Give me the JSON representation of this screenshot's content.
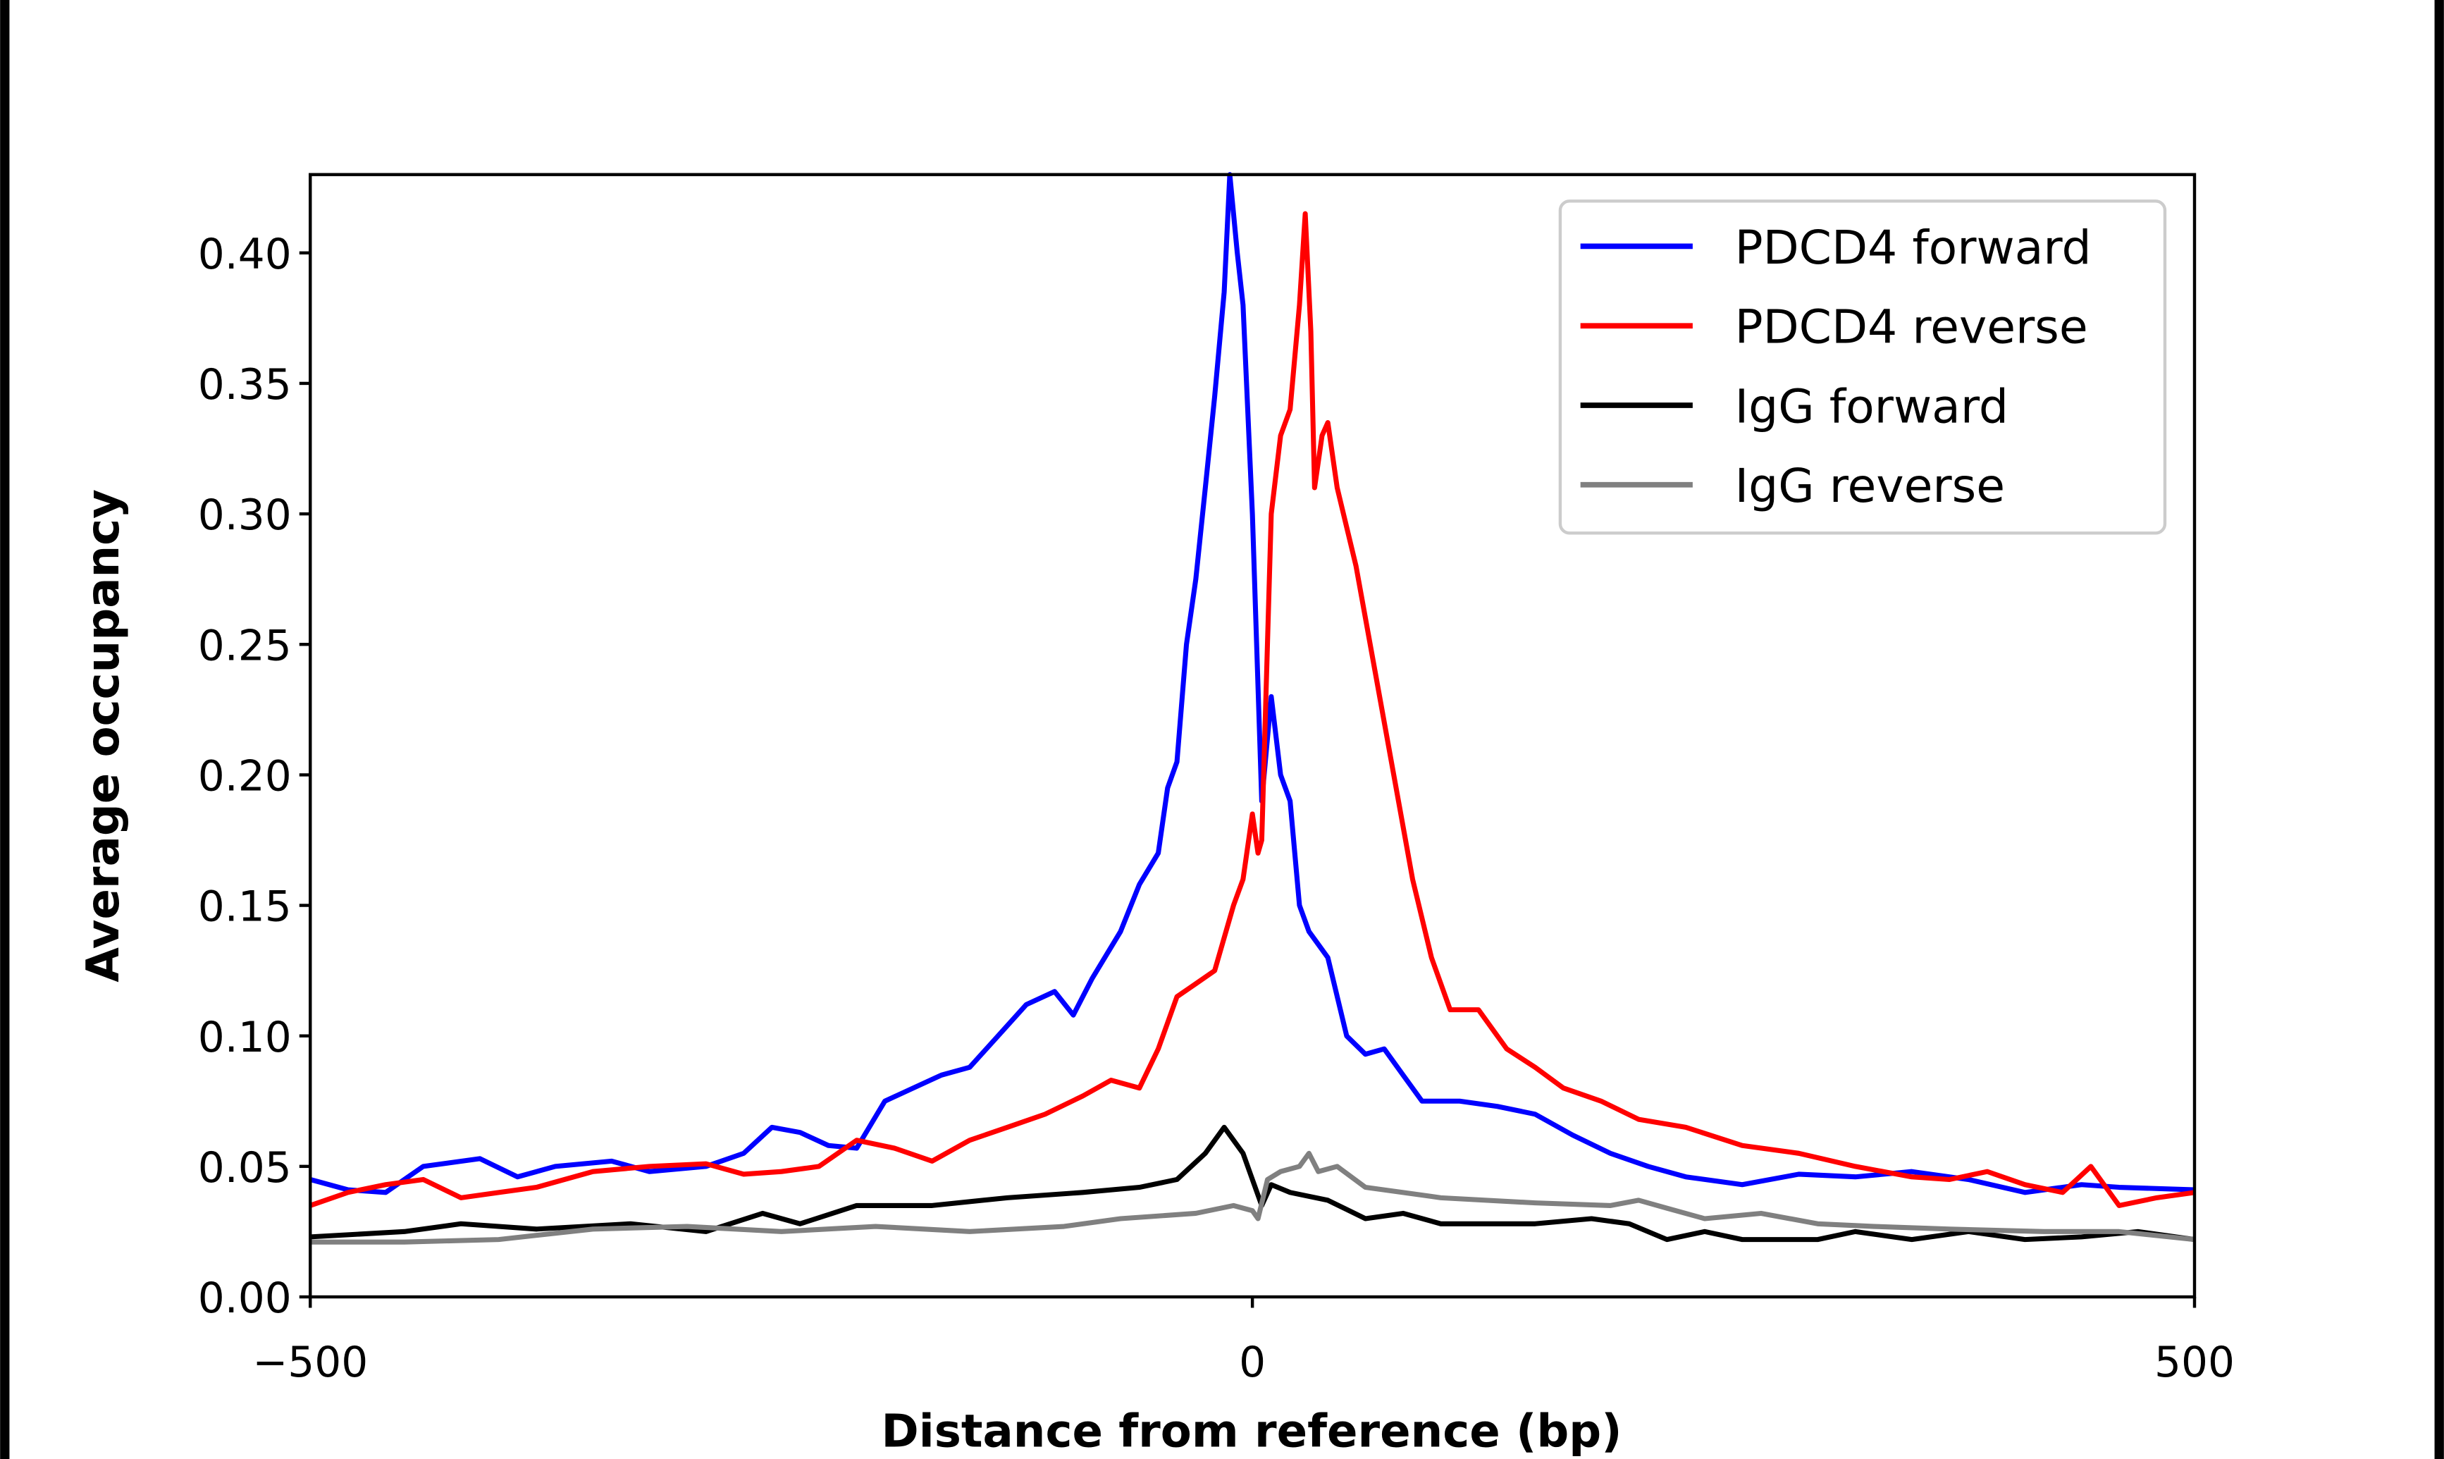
{
  "chart_data": {
    "type": "line",
    "title": "",
    "xlabel": "Distance from reference (bp)",
    "ylabel": "Average occupancy",
    "xlim": [
      -500,
      500
    ],
    "ylim": [
      0,
      0.43
    ],
    "xticks": [
      -500,
      0,
      500
    ],
    "xtick_labels": [
      "−500",
      "0",
      "500"
    ],
    "yticks": [
      0,
      0.05,
      0.1,
      0.15,
      0.2,
      0.25,
      0.3,
      0.35,
      0.4
    ],
    "ytick_labels": [
      "0.00",
      "0.05",
      "0.10",
      "0.15",
      "0.20",
      "0.25",
      "0.30",
      "0.35",
      "0.40"
    ],
    "grid": false,
    "legend_position": "top-right",
    "series": [
      {
        "name": "PDCD4 forward",
        "color": "#0000ff",
        "x": [
          -500,
          -480,
          -460,
          -440,
          -410,
          -390,
          -370,
          -340,
          -320,
          -290,
          -270,
          -255,
          -240,
          -225,
          -210,
          -195,
          -180,
          -165,
          -150,
          -135,
          -120,
          -105,
          -95,
          -85,
          -70,
          -60,
          -50,
          -45,
          -40,
          -35,
          -30,
          -25,
          -20,
          -15,
          -12,
          -8,
          -5,
          0,
          5,
          10,
          15,
          20,
          25,
          30,
          40,
          50,
          60,
          70,
          80,
          90,
          110,
          130,
          150,
          170,
          190,
          210,
          230,
          260,
          290,
          320,
          350,
          380,
          410,
          440,
          460,
          500
        ],
        "y": [
          0.045,
          0.041,
          0.04,
          0.05,
          0.053,
          0.046,
          0.05,
          0.052,
          0.048,
          0.05,
          0.055,
          0.065,
          0.063,
          0.058,
          0.057,
          0.075,
          0.08,
          0.085,
          0.088,
          0.1,
          0.112,
          0.117,
          0.108,
          0.122,
          0.14,
          0.158,
          0.17,
          0.195,
          0.205,
          0.25,
          0.275,
          0.31,
          0.345,
          0.385,
          0.43,
          0.4,
          0.38,
          0.3,
          0.19,
          0.23,
          0.2,
          0.19,
          0.15,
          0.14,
          0.13,
          0.1,
          0.093,
          0.095,
          0.085,
          0.075,
          0.075,
          0.073,
          0.07,
          0.062,
          0.055,
          0.05,
          0.046,
          0.043,
          0.047,
          0.046,
          0.048,
          0.045,
          0.04,
          0.043,
          0.042,
          0.041
        ]
      },
      {
        "name": "PDCD4 reverse",
        "color": "#ff0000",
        "x": [
          -500,
          -480,
          -460,
          -440,
          -420,
          -400,
          -380,
          -350,
          -320,
          -290,
          -270,
          -250,
          -230,
          -210,
          -190,
          -170,
          -150,
          -130,
          -110,
          -90,
          -75,
          -60,
          -50,
          -40,
          -30,
          -20,
          -10,
          -5,
          0,
          3,
          5,
          10,
          15,
          20,
          25,
          28,
          31,
          33,
          37,
          40,
          45,
          55,
          65,
          75,
          85,
          95,
          105,
          120,
          135,
          150,
          165,
          185,
          205,
          230,
          260,
          290,
          320,
          350,
          370,
          390,
          410,
          430,
          445,
          460,
          480,
          500
        ],
        "y": [
          0.035,
          0.04,
          0.043,
          0.045,
          0.038,
          0.04,
          0.042,
          0.048,
          0.05,
          0.051,
          0.047,
          0.048,
          0.05,
          0.06,
          0.057,
          0.052,
          0.06,
          0.065,
          0.07,
          0.077,
          0.083,
          0.08,
          0.095,
          0.115,
          0.12,
          0.125,
          0.15,
          0.16,
          0.185,
          0.17,
          0.175,
          0.3,
          0.33,
          0.34,
          0.38,
          0.415,
          0.37,
          0.31,
          0.33,
          0.335,
          0.31,
          0.28,
          0.24,
          0.2,
          0.16,
          0.13,
          0.11,
          0.11,
          0.095,
          0.088,
          0.08,
          0.075,
          0.068,
          0.065,
          0.058,
          0.055,
          0.05,
          0.046,
          0.045,
          0.048,
          0.043,
          0.04,
          0.05,
          0.035,
          0.038,
          0.04
        ]
      },
      {
        "name": "IgG forward",
        "color": "#000000",
        "x": [
          -500,
          -450,
          -420,
          -380,
          -330,
          -290,
          -260,
          -240,
          -210,
          -170,
          -130,
          -90,
          -60,
          -40,
          -25,
          -15,
          -5,
          0,
          5,
          10,
          20,
          40,
          60,
          80,
          100,
          150,
          180,
          200,
          220,
          240,
          260,
          300,
          320,
          350,
          380,
          410,
          440,
          470,
          500
        ],
        "y": [
          0.023,
          0.025,
          0.028,
          0.026,
          0.028,
          0.025,
          0.032,
          0.028,
          0.035,
          0.035,
          0.038,
          0.04,
          0.042,
          0.045,
          0.055,
          0.065,
          0.055,
          0.045,
          0.035,
          0.043,
          0.04,
          0.037,
          0.03,
          0.032,
          0.028,
          0.028,
          0.03,
          0.028,
          0.022,
          0.025,
          0.022,
          0.022,
          0.025,
          0.022,
          0.025,
          0.022,
          0.023,
          0.025,
          0.022
        ]
      },
      {
        "name": "IgG reverse",
        "color": "#808080",
        "x": [
          -500,
          -450,
          -400,
          -350,
          -300,
          -250,
          -200,
          -150,
          -100,
          -70,
          -30,
          -10,
          0,
          3,
          8,
          15,
          25,
          30,
          35,
          45,
          60,
          80,
          100,
          150,
          190,
          205,
          220,
          240,
          270,
          300,
          330,
          370,
          420,
          460,
          500
        ],
        "y": [
          0.021,
          0.021,
          0.022,
          0.026,
          0.027,
          0.025,
          0.027,
          0.025,
          0.027,
          0.03,
          0.032,
          0.035,
          0.033,
          0.03,
          0.045,
          0.048,
          0.05,
          0.055,
          0.048,
          0.05,
          0.042,
          0.04,
          0.038,
          0.036,
          0.035,
          0.037,
          0.034,
          0.03,
          0.032,
          0.028,
          0.027,
          0.026,
          0.025,
          0.025,
          0.022
        ]
      }
    ]
  }
}
